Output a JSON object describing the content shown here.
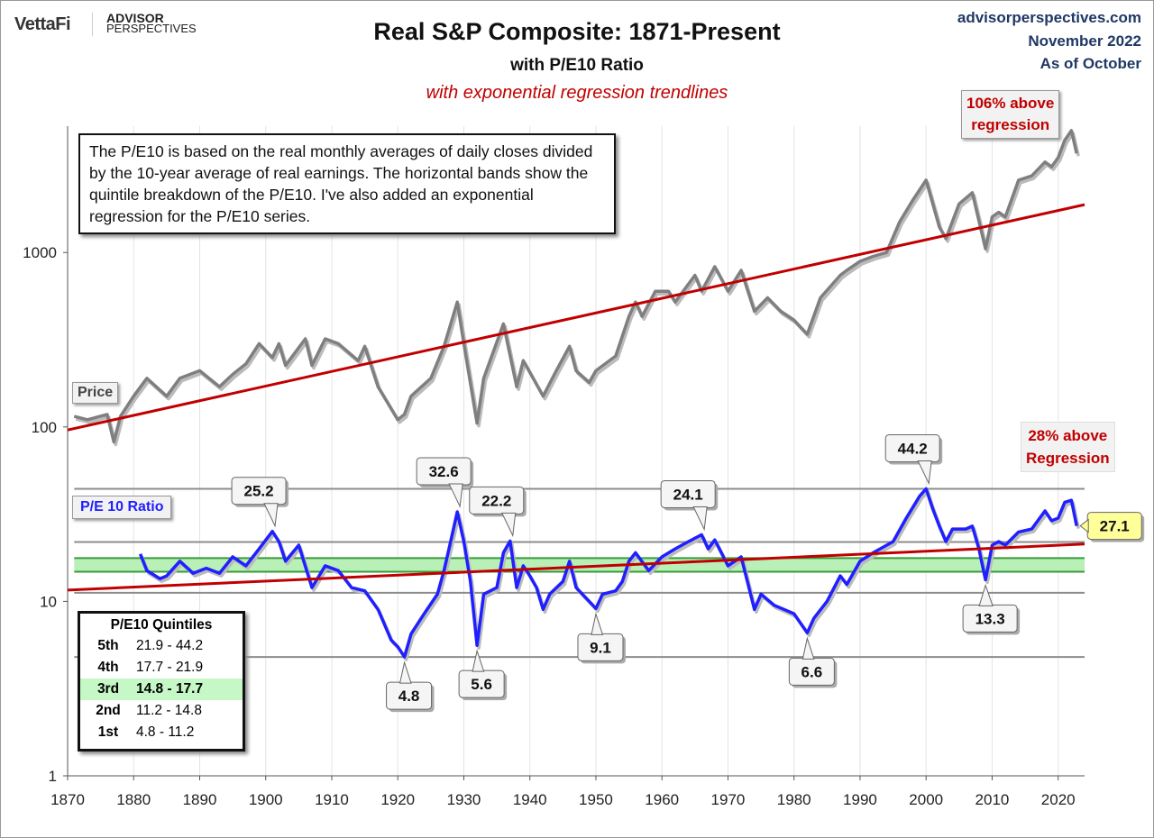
{
  "header": {
    "logo": "VettaFi",
    "brand_line1": "ADVISOR",
    "brand_line2": "PERSPECTIVES",
    "site": "advisorperspectives.com",
    "date": "November 2022",
    "as_of": "As of October"
  },
  "chart_data": {
    "type": "line",
    "title": "Real S&P Composite: 1871-Present",
    "subtitle": "with P/E10 Ratio",
    "subtitle2": "with exponential regression trendlines",
    "y_scale": "log",
    "xlim": [
      1870,
      2024
    ],
    "ylim": [
      1,
      5300
    ],
    "x_ticks": [
      "1870",
      "1880",
      "1890",
      "1900",
      "1910",
      "1920",
      "1930",
      "1940",
      "1950",
      "1960",
      "1970",
      "1980",
      "1990",
      "2000",
      "2010",
      "2020"
    ],
    "y_ticks": [
      "1",
      "10",
      "100",
      "1000"
    ],
    "grid": "vertical decades",
    "colors": {
      "price": "#7f7f7f",
      "pe10": "#1f1fff",
      "regression": "#c00000",
      "quintile_line": "#8c8c8c",
      "band": "#b8f0b8",
      "callout_highlight": "#ffff99"
    },
    "note": "The P/E10 is based on the real monthly averages of daily closes divided by the 10-year average of real earnings. The horizontal bands show the quintile breakdown of the P/E10. I've also added an exponential regression for the P/E10 series.",
    "series": [
      {
        "name": "Price",
        "x": [
          1871,
          1873,
          1876,
          1877,
          1878,
          1880,
          1882,
          1885,
          1887,
          1890,
          1893,
          1895,
          1897,
          1899,
          1901,
          1902,
          1903,
          1906,
          1907,
          1909,
          1911,
          1914,
          1915,
          1917,
          1920,
          1921,
          1922,
          1925,
          1927,
          1929,
          1930,
          1932,
          1933,
          1936,
          1938,
          1939,
          1942,
          1944,
          1946,
          1947,
          1949,
          1950,
          1953,
          1955,
          1956,
          1957,
          1959,
          1961,
          1962,
          1965,
          1966,
          1968,
          1970,
          1972,
          1974,
          1976,
          1978,
          1980,
          1982,
          1984,
          1987,
          1988,
          1990,
          1992,
          1994,
          1996,
          1998,
          2000,
          2002,
          2003,
          2005,
          2007,
          2009,
          2010,
          2011,
          2012,
          2014,
          2016,
          2018,
          2019,
          2020,
          2021,
          2022.0,
          2022.8
        ],
        "y": [
          115,
          110,
          118,
          82,
          115,
          150,
          190,
          150,
          190,
          210,
          170,
          200,
          230,
          300,
          250,
          300,
          225,
          320,
          225,
          320,
          300,
          240,
          290,
          170,
          110,
          118,
          150,
          190,
          290,
          520,
          300,
          105,
          190,
          390,
          170,
          240,
          150,
          210,
          290,
          210,
          180,
          210,
          255,
          430,
          520,
          430,
          600,
          600,
          520,
          740,
          600,
          830,
          600,
          790,
          460,
          550,
          460,
          410,
          340,
          550,
          740,
          790,
          890,
          950,
          1000,
          1500,
          2000,
          2600,
          1400,
          1200,
          1900,
          2200,
          1050,
          1600,
          1700,
          1600,
          2600,
          2750,
          3300,
          3100,
          3500,
          4400,
          5000,
          3700
        ]
      },
      {
        "name": "P/E 10 Ratio",
        "x": [
          1881,
          1882,
          1884,
          1885,
          1887,
          1889,
          1891,
          1893,
          1895,
          1897,
          1899,
          1901,
          1902,
          1903,
          1905,
          1907,
          1909,
          1911,
          1913,
          1915,
          1917,
          1919,
          1920,
          1921,
          1922,
          1924,
          1926,
          1927,
          1928,
          1929,
          1930,
          1931,
          1932,
          1933,
          1935,
          1936,
          1937,
          1938,
          1939,
          1940,
          1941,
          1942,
          1943,
          1945,
          1946,
          1947,
          1949,
          1950,
          1951,
          1953,
          1954,
          1955,
          1956,
          1958,
          1960,
          1962,
          1964,
          1966,
          1967,
          1968,
          1970,
          1972,
          1974,
          1975,
          1977,
          1980,
          1982,
          1983,
          1985,
          1987,
          1988,
          1990,
          1992,
          1995,
          1997,
          1999,
          2000,
          2001,
          2002,
          2003,
          2004,
          2006,
          2007,
          2008,
          2009,
          2010,
          2011,
          2012,
          2014,
          2016,
          2018,
          2019,
          2020,
          2021,
          2022.0,
          2022.8
        ],
        "y": [
          18.7,
          15,
          13.5,
          14,
          17,
          14.5,
          15.5,
          14.5,
          18,
          16,
          20,
          25.2,
          22,
          17,
          21,
          12,
          16,
          15,
          12,
          11.5,
          9,
          6,
          5.5,
          4.8,
          6.5,
          8.5,
          11,
          15,
          22,
          32.6,
          22,
          13,
          5.6,
          11,
          12,
          19,
          22.2,
          12,
          16,
          14,
          12,
          9,
          11,
          13,
          17,
          12,
          10,
          9.1,
          11,
          11.5,
          13,
          17,
          19,
          15,
          18,
          20,
          22,
          24.1,
          20,
          22.5,
          16,
          18,
          9,
          11,
          9.5,
          8.5,
          6.6,
          8,
          10,
          14,
          12.5,
          17,
          19,
          22,
          30,
          40,
          44.2,
          34,
          27,
          22,
          26,
          26,
          27,
          20,
          13.3,
          21,
          22,
          21,
          25,
          26,
          33,
          29,
          30,
          37,
          38,
          27.1
        ]
      }
    ],
    "regressions": [
      {
        "series": "Price",
        "x": [
          1870,
          2024
        ],
        "y": [
          96,
          1880
        ]
      },
      {
        "series": "P/E 10 Ratio",
        "x": [
          1870,
          2024
        ],
        "y": [
          11.6,
          21.3
        ]
      }
    ],
    "quintile_lines": [
      44.2,
      21.9,
      17.7,
      14.8,
      11.2,
      4.8
    ],
    "highlight_band": [
      14.8,
      17.7
    ],
    "callouts": [
      {
        "text": "25.2",
        "x": 1901,
        "y": 25.2,
        "place": "above"
      },
      {
        "text": "32.6",
        "x": 1929,
        "y": 32.6,
        "place": "above"
      },
      {
        "text": "22.2",
        "x": 1937,
        "y": 22.2,
        "place": "above"
      },
      {
        "text": "24.1",
        "x": 1966,
        "y": 24.1,
        "place": "above"
      },
      {
        "text": "44.2",
        "x": 2000,
        "y": 44.2,
        "place": "above"
      },
      {
        "text": "4.8",
        "x": 1921,
        "y": 4.8,
        "place": "below"
      },
      {
        "text": "5.6",
        "x": 1932,
        "y": 5.6,
        "place": "below"
      },
      {
        "text": "9.1",
        "x": 1950,
        "y": 9.1,
        "place": "below"
      },
      {
        "text": "6.6",
        "x": 1982,
        "y": 6.6,
        "place": "below"
      },
      {
        "text": "13.3",
        "x": 2009,
        "y": 13.3,
        "place": "below"
      },
      {
        "text": "27.1",
        "x": 2022.8,
        "y": 27.1,
        "place": "right"
      }
    ],
    "labels": {
      "price": "Price",
      "pe10": "P/E 10 Ratio",
      "price_deviation_1": "106% above",
      "price_deviation_2": "regression",
      "pe_deviation_1": "28% above",
      "pe_deviation_2": "Regression"
    },
    "quintiles": {
      "title": "P/E10 Quintiles",
      "rows": [
        {
          "rank": "5th",
          "range": "21.9 - 44.2"
        },
        {
          "rank": "4th",
          "range": "17.7 - 21.9"
        },
        {
          "rank": "3rd",
          "range": "14.8 - 17.7"
        },
        {
          "rank": "2nd",
          "range": "11.2 - 14.8"
        },
        {
          "rank": "1st",
          "range": "4.8 - 11.2"
        }
      ]
    }
  }
}
